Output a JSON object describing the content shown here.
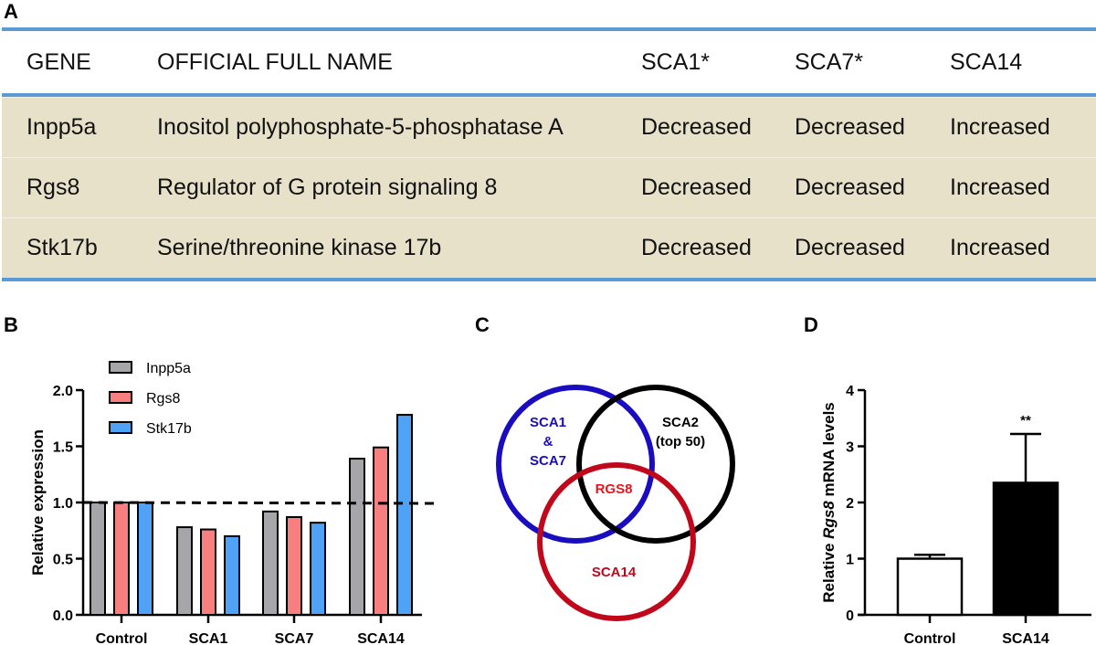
{
  "panels": {
    "a": "A",
    "b": "B",
    "c": "C",
    "d": "D"
  },
  "table": {
    "headers": [
      "GENE",
      "OFFICIAL FULL NAME",
      "SCA1*",
      "SCA7*",
      "SCA14"
    ],
    "rows": [
      [
        "Inpp5a",
        "Inositol polyphosphate-5-phosphatase A",
        "Decreased",
        "Decreased",
        "Increased"
      ],
      [
        "Rgs8",
        "Regulator of G protein signaling 8",
        "Decreased",
        "Decreased",
        "Increased"
      ],
      [
        "Stk17b",
        "Serine/threonine kinase 17b",
        "Decreased",
        "Decreased",
        "Increased"
      ]
    ],
    "row_color": "#e8e1c9",
    "rule_color": "#5b9bd5"
  },
  "venn": {
    "sets": [
      {
        "label_lines": [
          "SCA1",
          "&",
          "SCA7"
        ],
        "color": "#1a0dbf"
      },
      {
        "label_lines": [
          "SCA2",
          "(top 50)"
        ],
        "color": "#000000"
      },
      {
        "label_lines": [
          "SCA14"
        ],
        "color": "#c0081a"
      }
    ],
    "intersection": {
      "label": "RGS8",
      "color": "#e8141e"
    }
  },
  "chart_data": [
    {
      "type": "bar",
      "ylabel": "Relative expression",
      "ylim": [
        0,
        2.0
      ],
      "yticks": [
        "0.0",
        "0.5",
        "1.0",
        "1.5",
        "2.0"
      ],
      "categories": [
        "Control",
        "SCA1",
        "SCA7",
        "SCA14"
      ],
      "series": [
        {
          "name": "Inpp5a",
          "color": "#a6a6aa",
          "values": [
            1.0,
            0.78,
            0.92,
            1.39
          ]
        },
        {
          "name": "Rgs8",
          "color": "#f77f80",
          "values": [
            1.0,
            0.76,
            0.87,
            1.49
          ]
        },
        {
          "name": "Stk17b",
          "color": "#4fa2f5",
          "values": [
            1.0,
            0.7,
            0.82,
            1.78
          ]
        }
      ],
      "reference_line": {
        "y": 1.0,
        "style": "dashed"
      },
      "legend": "top-left"
    },
    {
      "type": "bar",
      "ylabel_parts": [
        "Relative ",
        "Rgs8",
        " mRNA levels"
      ],
      "ylim": [
        0,
        4
      ],
      "yticks": [
        "0",
        "1",
        "2",
        "3",
        "4"
      ],
      "categories": [
        "Control",
        "SCA14"
      ],
      "values": [
        1.0,
        2.35
      ],
      "error_upper": [
        1.07,
        3.22
      ],
      "fills": [
        "#ffffff",
        "#000000"
      ],
      "annotations": [
        "",
        "**"
      ]
    }
  ]
}
